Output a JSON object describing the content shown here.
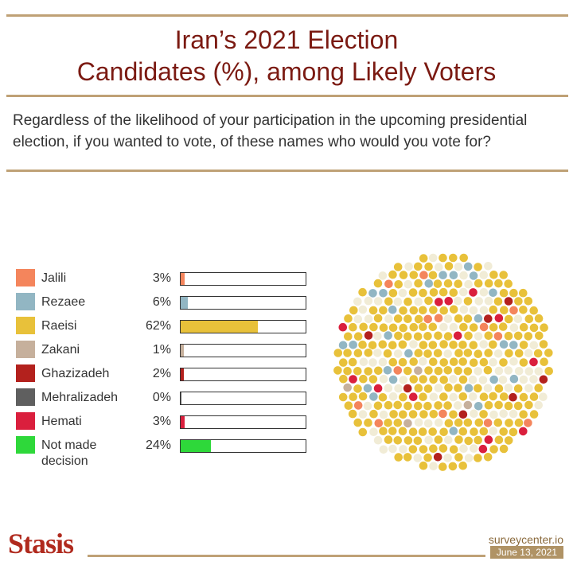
{
  "header": {
    "title_line1": "Iran’s 2021 Election",
    "title_line2": "Candidates (%), among Likely Voters",
    "question": "Regardless of the likelihood of your participation in the upcoming presidential election, if you wanted to vote, of these names who would you vote for?"
  },
  "chart_data": {
    "type": "bar",
    "categories": [
      "Jalili",
      "Rezaee",
      "Raeisi",
      "Zakani",
      "Ghazizadeh",
      "Mehralizadeh",
      "Hemati",
      "Not made decision"
    ],
    "values": [
      3,
      6,
      62,
      1,
      2,
      0,
      3,
      24
    ],
    "value_labels": [
      "3%",
      "6%",
      "62%",
      "1%",
      "2%",
      "0%",
      "3%",
      "24%"
    ],
    "colors": [
      "#f4855c",
      "#92b6c3",
      "#e8c13a",
      "#c6b09c",
      "#b3211d",
      "#5f5f5f",
      "#da1f3d",
      "#2ed83a"
    ],
    "ylim": [
      0,
      100
    ],
    "legend_position": "left",
    "grid": false
  },
  "footer": {
    "logo": "Stasis",
    "site": "surveycenter.io",
    "date": "June 13, 2021"
  }
}
